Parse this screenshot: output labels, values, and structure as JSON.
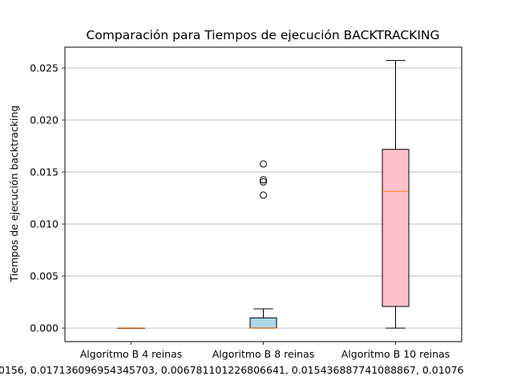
{
  "chart_data": {
    "type": "box",
    "title": "Comparación para Tiempos de ejecución BACKTRACKING",
    "xlabel": "",
    "ylabel": "Tiempos de ejecución backtracking",
    "ylim": [
      -0.0013,
      0.027
    ],
    "yticks": [
      0.0,
      0.005,
      0.01,
      0.015,
      0.02,
      0.025
    ],
    "ytick_labels": [
      "0.000",
      "0.005",
      "0.010",
      "0.015",
      "0.020",
      "0.025"
    ],
    "grid": "y",
    "categories": [
      "Algoritmo B 4 reinas",
      "Algoritmo B 8 reinas",
      "Algoritmo B 10 reinas"
    ],
    "boxes": [
      {
        "name": "Algoritmo B 4 reinas",
        "color": "#f5f5dc",
        "whislo": 0.0,
        "q1": 0.0,
        "med": 0.0,
        "q3": 0.0,
        "whishi": 0.0,
        "fliers": []
      },
      {
        "name": "Algoritmo B 8 reinas",
        "color": "#add8e6",
        "whislo": 0.0,
        "q1": 0.0,
        "med": 0.0,
        "q3": 0.00098,
        "whishi": 0.00185,
        "fliers": [
          0.01578,
          0.01425,
          0.01405,
          0.01278
        ]
      },
      {
        "name": "Algoritmo B 10 reinas",
        "color": "#ffc0cb",
        "whislo": 0.0,
        "q1": 0.00208,
        "med": 0.01313,
        "q3": 0.01718,
        "whishi": 0.02572,
        "fliers": []
      }
    ],
    "overflow_label": "0156, 0.017136096954345703, 0.006781101226806641, 0.015436887741088867, 0.01076",
    "median_color": "#ff7f0e",
    "grid_color": "#b0b0b0"
  }
}
